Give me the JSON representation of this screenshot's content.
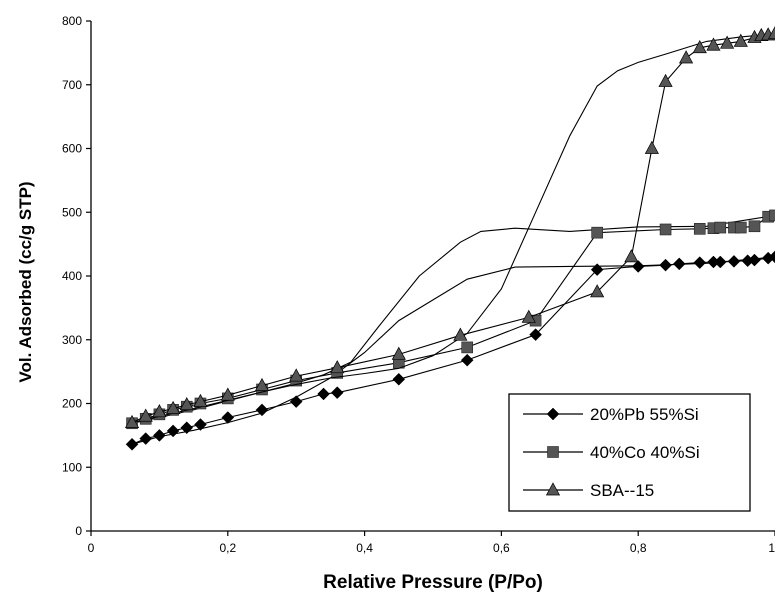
{
  "chart_data": {
    "type": "line",
    "xlabel": "Relative Pressure (P/Po)",
    "ylabel": "Vol. Adsorbed (cc/g STP)",
    "xlim": [
      0,
      1
    ],
    "ylim": [
      0,
      800
    ],
    "x_ticks": [
      "0",
      "0,2",
      "0,4",
      "0,6",
      "0,8",
      "1"
    ],
    "y_ticks": [
      "0",
      "100",
      "200",
      "300",
      "400",
      "500",
      "600",
      "700",
      "800"
    ],
    "x_tick_values": [
      0,
      0.2,
      0.4,
      0.6,
      0.8,
      1.0
    ],
    "y_tick_values": [
      0,
      100,
      200,
      300,
      400,
      500,
      600,
      700,
      800
    ],
    "grid": false,
    "legend_position": "bottom-right",
    "series": [
      {
        "name": "20%Pb 55%Si",
        "marker": "diamond",
        "color": "#000000",
        "adsorption": [
          [
            0.06,
            136
          ],
          [
            0.08,
            145
          ],
          [
            0.1,
            150
          ],
          [
            0.12,
            157
          ],
          [
            0.14,
            162
          ],
          [
            0.16,
            167
          ],
          [
            0.2,
            178
          ],
          [
            0.25,
            190
          ],
          [
            0.3,
            203
          ],
          [
            0.34,
            215
          ],
          [
            0.36,
            217
          ],
          [
            0.45,
            238
          ],
          [
            0.55,
            268
          ],
          [
            0.65,
            308
          ],
          [
            0.74,
            410
          ],
          [
            0.8,
            415
          ],
          [
            0.84,
            417
          ],
          [
            0.86,
            419
          ],
          [
            0.89,
            421
          ],
          [
            0.91,
            422
          ],
          [
            0.92,
            422
          ],
          [
            0.94,
            423
          ],
          [
            0.96,
            424
          ],
          [
            0.97,
            425
          ],
          [
            0.99,
            428
          ],
          [
            1.0,
            430
          ]
        ],
        "desorption": [
          [
            1.0,
            430
          ],
          [
            0.9,
            420
          ],
          [
            0.8,
            416
          ],
          [
            0.7,
            415
          ],
          [
            0.62,
            414
          ],
          [
            0.55,
            395
          ],
          [
            0.45,
            330
          ],
          [
            0.4,
            280
          ],
          [
            0.35,
            240
          ],
          [
            0.3,
            210
          ],
          [
            0.25,
            185
          ],
          [
            0.2,
            170
          ],
          [
            0.15,
            158
          ],
          [
            0.1,
            148
          ],
          [
            0.06,
            136
          ]
        ]
      },
      {
        "name": "40%Co 40%Si",
        "marker": "square",
        "color": "#555555",
        "adsorption": [
          [
            0.06,
            169
          ],
          [
            0.08,
            176
          ],
          [
            0.1,
            183
          ],
          [
            0.12,
            190
          ],
          [
            0.14,
            195
          ],
          [
            0.16,
            200
          ],
          [
            0.2,
            208
          ],
          [
            0.25,
            222
          ],
          [
            0.3,
            236
          ],
          [
            0.36,
            248
          ],
          [
            0.45,
            264
          ],
          [
            0.55,
            288
          ],
          [
            0.65,
            330
          ],
          [
            0.74,
            468
          ],
          [
            0.84,
            473
          ],
          [
            0.89,
            474
          ],
          [
            0.91,
            475
          ],
          [
            0.92,
            476
          ],
          [
            0.94,
            476
          ],
          [
            0.95,
            476
          ],
          [
            0.97,
            478
          ],
          [
            0.99,
            493
          ],
          [
            1.0,
            495
          ]
        ],
        "desorption": [
          [
            1.0,
            495
          ],
          [
            0.9,
            478
          ],
          [
            0.8,
            477
          ],
          [
            0.7,
            470
          ],
          [
            0.62,
            475
          ],
          [
            0.57,
            470
          ],
          [
            0.54,
            453
          ],
          [
            0.48,
            400
          ],
          [
            0.42,
            320
          ],
          [
            0.38,
            265
          ],
          [
            0.34,
            245
          ],
          [
            0.3,
            232
          ],
          [
            0.25,
            218
          ],
          [
            0.2,
            204
          ],
          [
            0.15,
            190
          ],
          [
            0.1,
            178
          ],
          [
            0.06,
            169
          ]
        ]
      },
      {
        "name": "SBA--15",
        "marker": "triangle",
        "color": "#555555",
        "adsorption": [
          [
            0.06,
            170
          ],
          [
            0.08,
            180
          ],
          [
            0.1,
            187
          ],
          [
            0.12,
            192
          ],
          [
            0.14,
            198
          ],
          [
            0.16,
            203
          ],
          [
            0.2,
            213
          ],
          [
            0.25,
            228
          ],
          [
            0.3,
            243
          ],
          [
            0.36,
            256
          ],
          [
            0.45,
            277
          ],
          [
            0.54,
            307
          ],
          [
            0.64,
            335
          ],
          [
            0.74,
            375
          ],
          [
            0.79,
            430
          ],
          [
            0.82,
            600
          ],
          [
            0.84,
            705
          ],
          [
            0.87,
            742
          ],
          [
            0.89,
            758
          ],
          [
            0.91,
            762
          ],
          [
            0.93,
            765
          ],
          [
            0.95,
            768
          ],
          [
            0.97,
            774
          ],
          [
            0.98,
            777
          ],
          [
            0.99,
            778
          ],
          [
            1.0,
            780
          ]
        ],
        "desorption": [
          [
            1.0,
            780
          ],
          [
            0.95,
            775
          ],
          [
            0.9,
            768
          ],
          [
            0.84,
            748
          ],
          [
            0.8,
            735
          ],
          [
            0.77,
            722
          ],
          [
            0.74,
            698
          ],
          [
            0.7,
            620
          ],
          [
            0.65,
            500
          ],
          [
            0.6,
            380
          ],
          [
            0.55,
            310
          ],
          [
            0.5,
            275
          ],
          [
            0.45,
            255
          ],
          [
            0.4,
            247
          ],
          [
            0.35,
            240
          ],
          [
            0.3,
            230
          ],
          [
            0.25,
            218
          ],
          [
            0.2,
            205
          ],
          [
            0.15,
            192
          ],
          [
            0.1,
            180
          ],
          [
            0.06,
            170
          ]
        ]
      }
    ]
  }
}
